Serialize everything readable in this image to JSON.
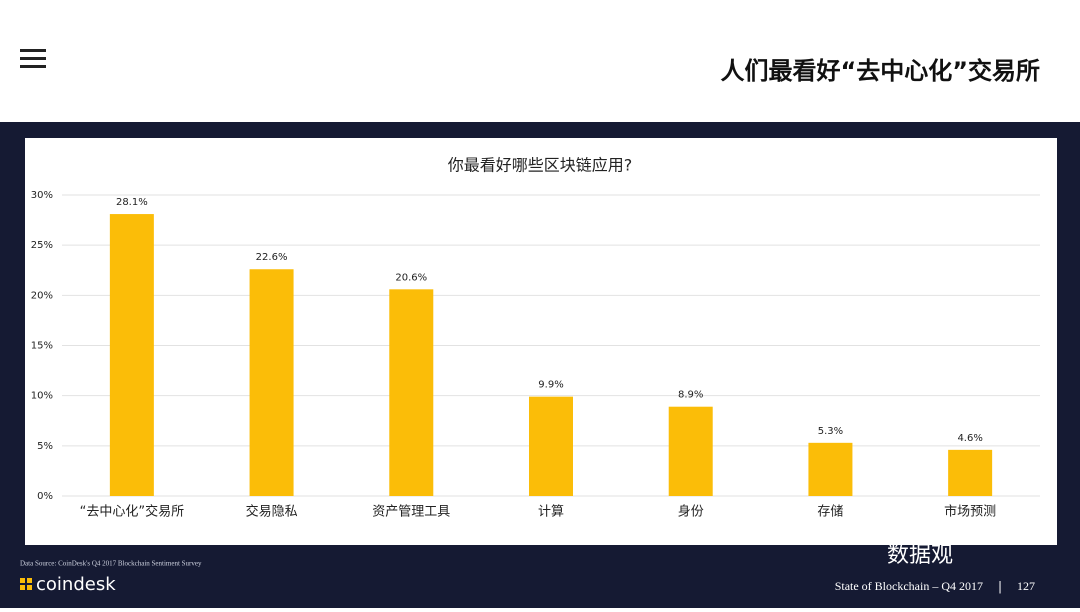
{
  "header": {
    "title": "人们最看好“去中心化”交易所"
  },
  "chart_data": {
    "type": "bar",
    "title": "你最看好哪些区块链应用?",
    "categories": [
      "“去中心化”交易所",
      "交易隐私",
      "资产管理工具",
      "计算",
      "身份",
      "存储",
      "市场预测"
    ],
    "values": [
      28.1,
      22.6,
      20.6,
      9.9,
      8.9,
      5.3,
      4.6
    ],
    "value_labels": [
      "28.1%",
      "22.6%",
      "20.6%",
      "9.9%",
      "8.9%",
      "5.3%",
      "4.6%"
    ],
    "color": "#fbbd08",
    "ylim": [
      0,
      30
    ],
    "yticks": [
      {
        "value": 0,
        "label": "0%"
      },
      {
        "value": 5,
        "label": "5%"
      },
      {
        "value": 10,
        "label": "10%"
      },
      {
        "value": 15,
        "label": "15%"
      },
      {
        "value": 20,
        "label": "20%"
      },
      {
        "value": 25,
        "label": "25%"
      },
      {
        "value": 30,
        "label": "30%"
      }
    ],
    "grid": true
  },
  "footer": {
    "source": "Data Source: CoinDesk's Q4 2017 Blockchain Sentiment Survey",
    "brand": "coindesk",
    "report": "State of Blockchain – Q4 2017",
    "page": "127",
    "watermark": "数据观"
  }
}
